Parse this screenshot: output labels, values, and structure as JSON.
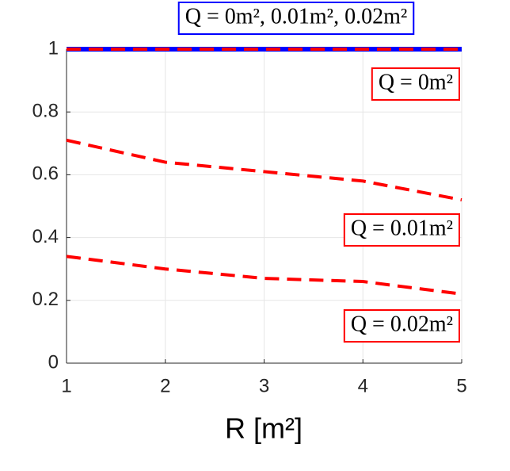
{
  "chart_data": {
    "type": "line",
    "x": [
      1,
      2,
      3,
      4,
      5
    ],
    "xlabel": "R [m²]",
    "xlim": [
      1,
      5
    ],
    "xticks": [
      1,
      2,
      3,
      4,
      5
    ],
    "ylim": [
      0,
      1
    ],
    "yticks": [
      0,
      0.2,
      0.4,
      0.6,
      0.8,
      1
    ],
    "grid": true,
    "series": [
      {
        "color": "#0000ff",
        "style": "solid",
        "values": [
          1,
          1,
          1,
          1,
          1
        ]
      },
      {
        "color": "#ff0000",
        "style": "dashed",
        "values": [
          1,
          1,
          1,
          1,
          1
        ]
      },
      {
        "color": "#ff0000",
        "style": "dashed",
        "values": [
          0.71,
          0.64,
          0.61,
          0.58,
          0.52
        ]
      },
      {
        "color": "#ff0000",
        "style": "dashed",
        "values": [
          0.34,
          0.3,
          0.27,
          0.26,
          0.22
        ]
      }
    ],
    "annotations": [
      {
        "text": "Q = 0m², 0.01m², 0.02m²",
        "color": "#0000ff"
      },
      {
        "text": "Q = 0m²",
        "color": "#ff0000"
      },
      {
        "text": "Q = 0.01m²",
        "color": "#ff0000"
      },
      {
        "text": "Q = 0.02m²",
        "color": "#ff0000"
      }
    ]
  }
}
